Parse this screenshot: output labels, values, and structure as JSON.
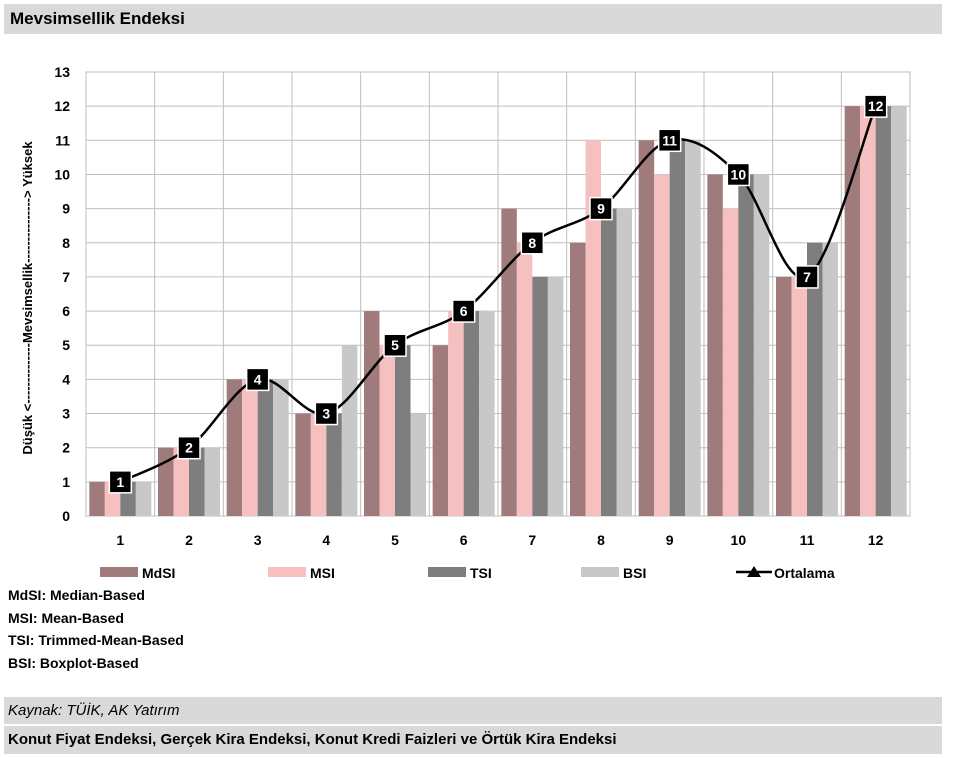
{
  "header": {
    "title": "Mevsimsellik Endeksi"
  },
  "chart_data": {
    "type": "bar",
    "categories": [
      "1",
      "2",
      "3",
      "4",
      "5",
      "6",
      "7",
      "8",
      "9",
      "10",
      "11",
      "12"
    ],
    "ylabel": "Düşük <--------------Mevsimsellik---------------> Yüksek",
    "ylim": [
      0,
      13
    ],
    "yticks": [
      0,
      1,
      2,
      3,
      4,
      5,
      6,
      7,
      8,
      9,
      10,
      11,
      12,
      13
    ],
    "grid": true,
    "legend_position": "bottom",
    "series": [
      {
        "name": "MdSI",
        "color": "#a07b7b",
        "values": [
          1,
          2,
          4,
          3,
          6,
          5,
          9,
          8,
          11,
          10,
          7,
          12
        ]
      },
      {
        "name": "MSI",
        "color": "#f7c0c0",
        "values": [
          1,
          2,
          4,
          3,
          5,
          6,
          8,
          11,
          10,
          9,
          7,
          12
        ]
      },
      {
        "name": "TSI",
        "color": "#7e7e7e",
        "values": [
          1,
          2,
          4,
          3,
          5,
          6,
          7,
          9,
          11,
          10,
          8,
          12
        ]
      },
      {
        "name": "BSI",
        "color": "#c8c8c8",
        "values": [
          1,
          2,
          4,
          5,
          3,
          6,
          7,
          9,
          11,
          10,
          8,
          12
        ]
      }
    ],
    "line": {
      "name": "Ortalama",
      "color": "#000000",
      "values": [
        1,
        2,
        4,
        3,
        5,
        6,
        8,
        9,
        11,
        10,
        7,
        12
      ]
    }
  },
  "notes": [
    "MdSI: Median-Based",
    "MSI: Mean-Based",
    "TSI: Trimmed-Mean-Based",
    "BSI: Boxplot-Based"
  ],
  "footer": {
    "source": "Kaynak: TÜİK, AK Yatırım",
    "next_title": "Konut Fiyat Endeksi, Gerçek Kira Endeksi, Konut Kredi Faizleri ve Örtük Kira Endeksi"
  }
}
